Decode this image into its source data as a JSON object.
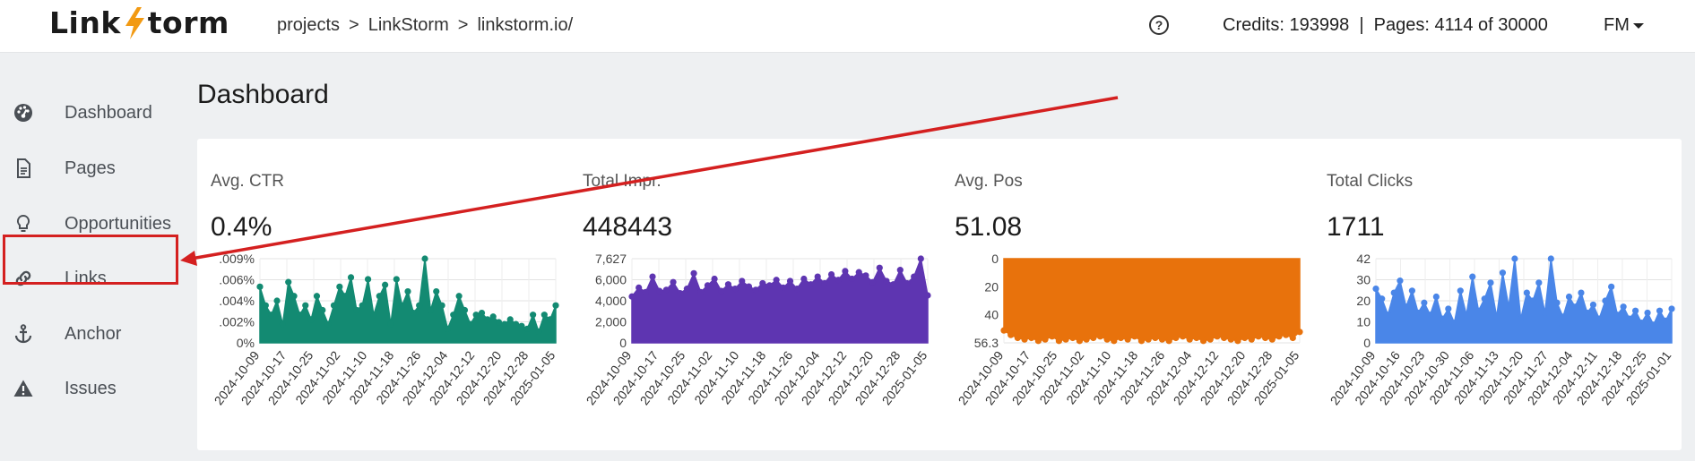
{
  "header": {
    "logo_left": "Link",
    "logo_right": "torm",
    "breadcrumb": [
      "projects",
      ">",
      "LinkStorm",
      ">",
      "linkstorm.io/"
    ],
    "help_icon": "question-circle-icon",
    "credits": "Credits: 193998  |  Pages: 4114 of 30000",
    "user": "FM"
  },
  "sidebar": {
    "items": [
      {
        "label": "Dashboard",
        "icon": "dashboard-gauge-icon"
      },
      {
        "label": "Pages",
        "icon": "document-icon"
      },
      {
        "label": "Opportunities",
        "icon": "lightbulb-icon"
      },
      {
        "label": "Links",
        "icon": "link-icon"
      },
      {
        "label": "Anchor",
        "icon": "anchor-icon"
      },
      {
        "label": "Issues",
        "icon": "warning-triangle-icon"
      }
    ],
    "highlighted": "Links"
  },
  "page_title": "Dashboard",
  "annotation": {
    "color": "#d42020"
  },
  "metrics": [
    {
      "label": "Avg. CTR",
      "value": "0.4%"
    },
    {
      "label": "Total Impr.",
      "value": "448443"
    },
    {
      "label": "Avg. Pos",
      "value": "51.08"
    },
    {
      "label": "Total Clicks",
      "value": "1711"
    }
  ],
  "chart_data": [
    {
      "type": "area",
      "title": "",
      "color": "#138a72",
      "y_ticks": [
        "0%",
        ".002%",
        ".004%",
        ".006%",
        ".009%"
      ],
      "ylim": [
        0,
        0.009
      ],
      "x_ticks": [
        "2024-10-09",
        "2024-10-17",
        "2024-10-25",
        "2024-11-02",
        "2024-11-10",
        "2024-11-18",
        "2024-11-26",
        "2024-12-04",
        "2024-12-12",
        "2024-12-20",
        "2024-12-28",
        "2025-01-05"
      ],
      "values": [
        0.006,
        0.004,
        0.003,
        0.0045,
        0.002,
        0.0065,
        0.005,
        0.003,
        0.004,
        0.0025,
        0.005,
        0.0035,
        0.002,
        0.004,
        0.006,
        0.005,
        0.007,
        0.0035,
        0.004,
        0.0068,
        0.003,
        0.005,
        0.0062,
        0.002,
        0.0068,
        0.004,
        0.0055,
        0.0032,
        0.004,
        0.009,
        0.0035,
        0.0055,
        0.004,
        0.0015,
        0.003,
        0.005,
        0.0035,
        0.002,
        0.003,
        0.0032,
        0.0025,
        0.0028,
        0.0022,
        0.002,
        0.0025,
        0.002,
        0.0018,
        0.0015,
        0.003,
        0.0012,
        0.003,
        0.0025,
        0.004
      ]
    },
    {
      "type": "area",
      "title": "",
      "color": "#5e35b1",
      "y_ticks": [
        "0",
        "2,000",
        "4,000",
        "6,000",
        "7,627"
      ],
      "ylim": [
        0,
        7627
      ],
      "x_ticks": [
        "2024-10-09",
        "2024-10-17",
        "2024-10-25",
        "2024-11-02",
        "2024-11-10",
        "2024-11-18",
        "2024-11-26",
        "2024-12-04",
        "2024-12-12",
        "2024-12-20",
        "2024-12-28",
        "2025-01-05"
      ],
      "values": [
        4200,
        5000,
        4600,
        6000,
        4700,
        4800,
        5500,
        4500,
        4900,
        6300,
        4600,
        5200,
        5800,
        4700,
        5300,
        4900,
        5600,
        5100,
        4800,
        5400,
        5200,
        5700,
        5000,
        5600,
        4900,
        5800,
        5300,
        6000,
        5400,
        6200,
        5700,
        6500,
        5800,
        6400,
        6100,
        5500,
        6800,
        5600,
        5300,
        6600,
        5400,
        6000,
        7627,
        4300
      ]
    },
    {
      "type": "area",
      "title": "",
      "color": "#e8720c",
      "y_ticks": [
        "0",
        "20",
        "40",
        "56.3"
      ],
      "ylim": [
        0,
        56.3
      ],
      "inverted": true,
      "x_ticks": [
        "2024-10-09",
        "2024-10-17",
        "2024-10-25",
        "2024-11-02",
        "2024-11-10",
        "2024-11-18",
        "2024-11-26",
        "2024-12-04",
        "2024-12-12",
        "2024-12-20",
        "2024-12-28",
        "2025-01-05"
      ],
      "values": [
        48,
        51,
        53,
        54,
        53,
        55,
        54,
        52,
        55,
        54,
        53,
        55,
        54,
        53,
        52,
        54,
        55,
        53,
        54,
        52,
        55,
        54,
        53,
        54,
        55,
        53,
        52,
        54,
        53,
        55,
        54,
        52,
        53,
        54,
        55,
        53,
        54,
        52,
        53,
        54,
        52,
        51,
        53,
        49
      ]
    },
    {
      "type": "area",
      "title": "",
      "color": "#4a86e8",
      "y_ticks": [
        "0",
        "10",
        "20",
        "30",
        "42"
      ],
      "ylim": [
        0,
        42
      ],
      "x_ticks": [
        "2024-10-09",
        "2024-10-16",
        "2024-10-23",
        "2024-10-30",
        "2024-11-06",
        "2024-11-13",
        "2024-11-20",
        "2024-11-27",
        "2024-12-04",
        "2024-12-11",
        "2024-12-18",
        "2024-12-25",
        "2025-01-01"
      ],
      "values": [
        27,
        22,
        14,
        25,
        31,
        18,
        26,
        15,
        20,
        14,
        23,
        12,
        17,
        10,
        26,
        14,
        33,
        16,
        22,
        30,
        13,
        35,
        18,
        42,
        12,
        25,
        21,
        30,
        15,
        42,
        20,
        13,
        23,
        18,
        25,
        15,
        19,
        12,
        21,
        28,
        14,
        18,
        12,
        16,
        10,
        15,
        9,
        16,
        11,
        17
      ]
    }
  ]
}
